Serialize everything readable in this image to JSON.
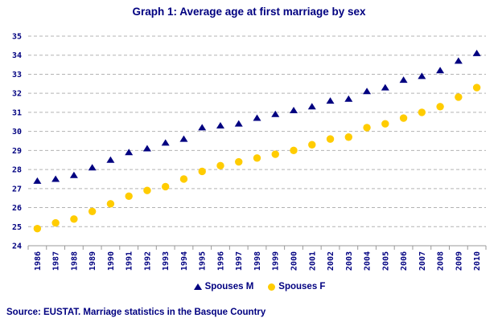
{
  "title": "Graph 1: Average age at first marriage by sex",
  "source": "Source: EUSTAT. Marriage statistics in the Basque Country",
  "legend": {
    "male": "Spouses M",
    "female": "Spouses F"
  },
  "colors": {
    "text_navy": "#000080",
    "male_marker": "#000080",
    "female_marker": "#FFCC00",
    "gridline": "#b3b3b3",
    "axis": "#999999"
  },
  "chart_data": {
    "type": "scatter",
    "title": "Graph 1: Average age at first marriage by sex",
    "categories": [
      "1986",
      "1987",
      "1988",
      "1989",
      "1990",
      "1991",
      "1992",
      "1993",
      "1994",
      "1995",
      "1996",
      "1997",
      "1998",
      "1999",
      "2000",
      "2001",
      "2002",
      "2003",
      "2004",
      "2005",
      "2006",
      "2007",
      "2008",
      "2009",
      "2010"
    ],
    "series": [
      {
        "name": "Spouses M",
        "marker": "triangle",
        "color": "#000080",
        "values": [
          27.4,
          27.5,
          27.7,
          28.1,
          28.5,
          28.9,
          29.1,
          29.4,
          29.6,
          30.2,
          30.3,
          30.4,
          30.7,
          30.9,
          31.1,
          31.3,
          31.6,
          31.7,
          32.1,
          32.3,
          32.7,
          32.9,
          33.2,
          33.7,
          34.1
        ]
      },
      {
        "name": "Spouses F",
        "marker": "circle",
        "color": "#FFCC00",
        "values": [
          24.9,
          25.2,
          25.4,
          25.8,
          26.2,
          26.6,
          26.9,
          27.1,
          27.5,
          27.9,
          28.2,
          28.4,
          28.6,
          28.8,
          29.0,
          29.3,
          29.6,
          29.7,
          30.2,
          30.4,
          30.7,
          31.0,
          31.3,
          31.8,
          32.3
        ]
      }
    ],
    "xlabel": "",
    "ylabel": "",
    "ylim": [
      24,
      35
    ],
    "ytick_step": 1,
    "grid": "horizontal-dashed",
    "legend_position": "bottom"
  }
}
